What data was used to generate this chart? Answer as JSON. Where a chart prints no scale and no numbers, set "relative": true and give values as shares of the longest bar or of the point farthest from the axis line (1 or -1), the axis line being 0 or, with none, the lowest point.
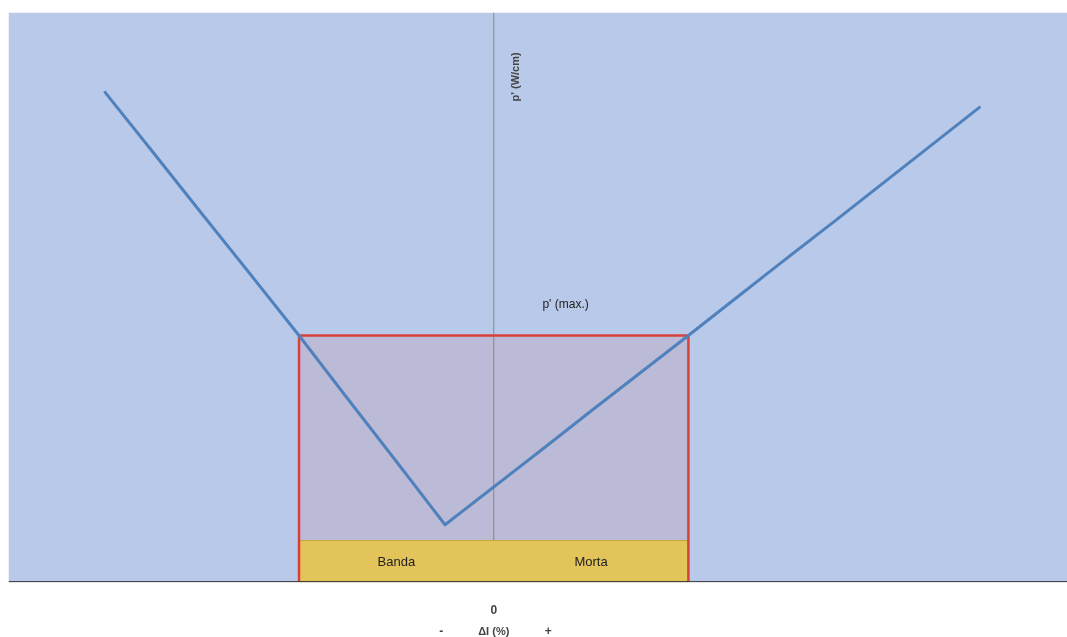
{
  "chart_data": {
    "type": "line",
    "relative": true,
    "xlabel": "ΔI (%)",
    "ylabel": "p' (W/cm)",
    "categories": [
      null,
      null,
      null,
      null,
      null,
      null,
      null,
      null,
      null,
      null,
      null,
      null,
      null,
      null,
      null,
      null,
      null,
      null,
      null
    ],
    "series": [
      {
        "color": "#4f81bd",
        "values": [
          1.0,
          0.876,
          0.751,
          0.627,
          0.502,
          0.373,
          0.245,
          0.116,
          0.193,
          0.27,
          0.348,
          0.425,
          0.502,
          0.58,
          0.658,
          0.735,
          0.813,
          0.891,
          0.969
        ]
      },
      {
        "type": "area",
        "name": "p' (max.)",
        "color": "#d9403a",
        "values": [
          null,
          null,
          null,
          null,
          0.502,
          0.502,
          0.502,
          0.502,
          0.502,
          0.502,
          0.502,
          0.502,
          0.502,
          null,
          null,
          null,
          null,
          null,
          null
        ]
      },
      {
        "type": "area",
        "color": "#e2c45a",
        "values": [
          null,
          null,
          null,
          null,
          0.084,
          0.084,
          0.084,
          0.084,
          0.084,
          0.084,
          0.084,
          0.084,
          0.084,
          null,
          null,
          null,
          null,
          null,
          null
        ]
      }
    ],
    "annotations": [
      "Banda",
      "Morta",
      "0",
      "-",
      "+"
    ],
    "marker": "none",
    "line_style": "solid"
  }
}
